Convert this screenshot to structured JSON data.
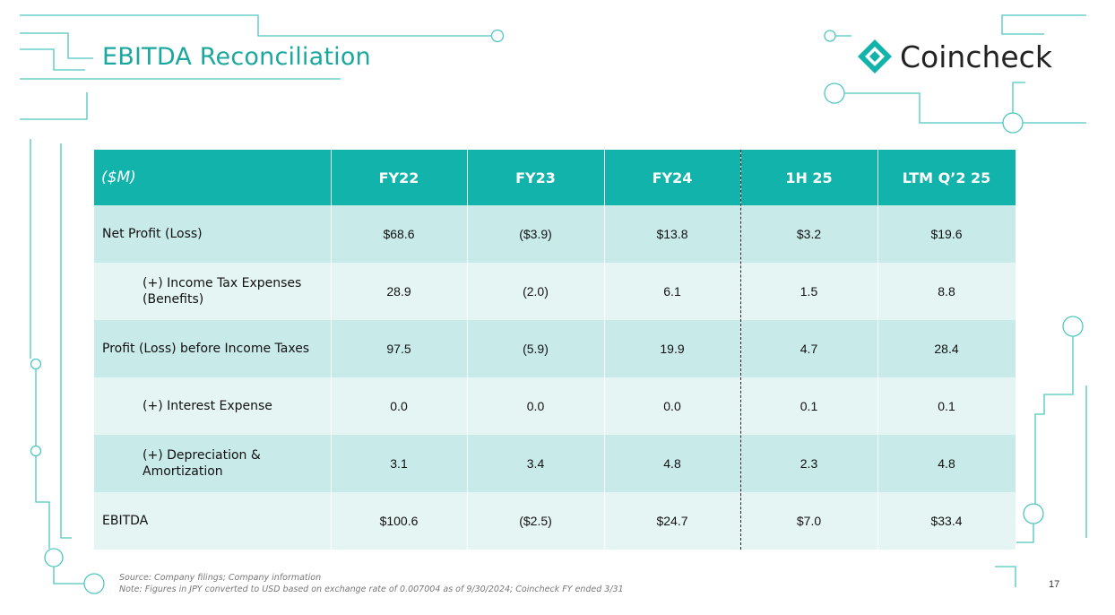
{
  "slide": {
    "title": "EBITDA Reconciliation",
    "brand": "Coincheck",
    "page_number": "17",
    "colors": {
      "accent": "#12b3ab",
      "title": "#1aa89e",
      "row_dark": "#c8ebea",
      "row_light": "#e5f5f4",
      "decor_line": "#4fc7c0"
    }
  },
  "table": {
    "unit_label": "($M)",
    "columns": [
      "FY22",
      "FY23",
      "FY24",
      "1H 25",
      "LTM Q’2 25"
    ],
    "rows": [
      {
        "label": "Net Profit (Loss)",
        "values": [
          "$68.6",
          "($3.9)",
          "$13.8",
          "$3.2",
          "$19.6"
        ]
      },
      {
        "label": "(+) Income Tax Expenses (Benefits)",
        "values": [
          "28.9",
          "(2.0)",
          "6.1",
          "1.5",
          "8.8"
        ]
      },
      {
        "label": "Profit (Loss) before Income Taxes",
        "values": [
          "97.5",
          "(5.9)",
          "19.9",
          "4.7",
          "28.4"
        ]
      },
      {
        "label": "(+) Interest Expense",
        "values": [
          "0.0",
          "0.0",
          "0.0",
          "0.1",
          "0.1"
        ]
      },
      {
        "label": "(+) Depreciation & Amortization",
        "values": [
          "3.1",
          "3.4",
          "4.8",
          "2.3",
          "4.8"
        ]
      },
      {
        "label": "EBITDA",
        "values": [
          "$100.6",
          "($2.5)",
          "$24.7",
          "$7.0",
          "$33.4"
        ]
      }
    ]
  },
  "notes": {
    "source": "Source: Company filings; Company information",
    "note": "Note: Figures in JPY converted to USD based on exchange rate of 0.007004 as of 9/30/2024; Coincheck FY ended 3/31"
  }
}
